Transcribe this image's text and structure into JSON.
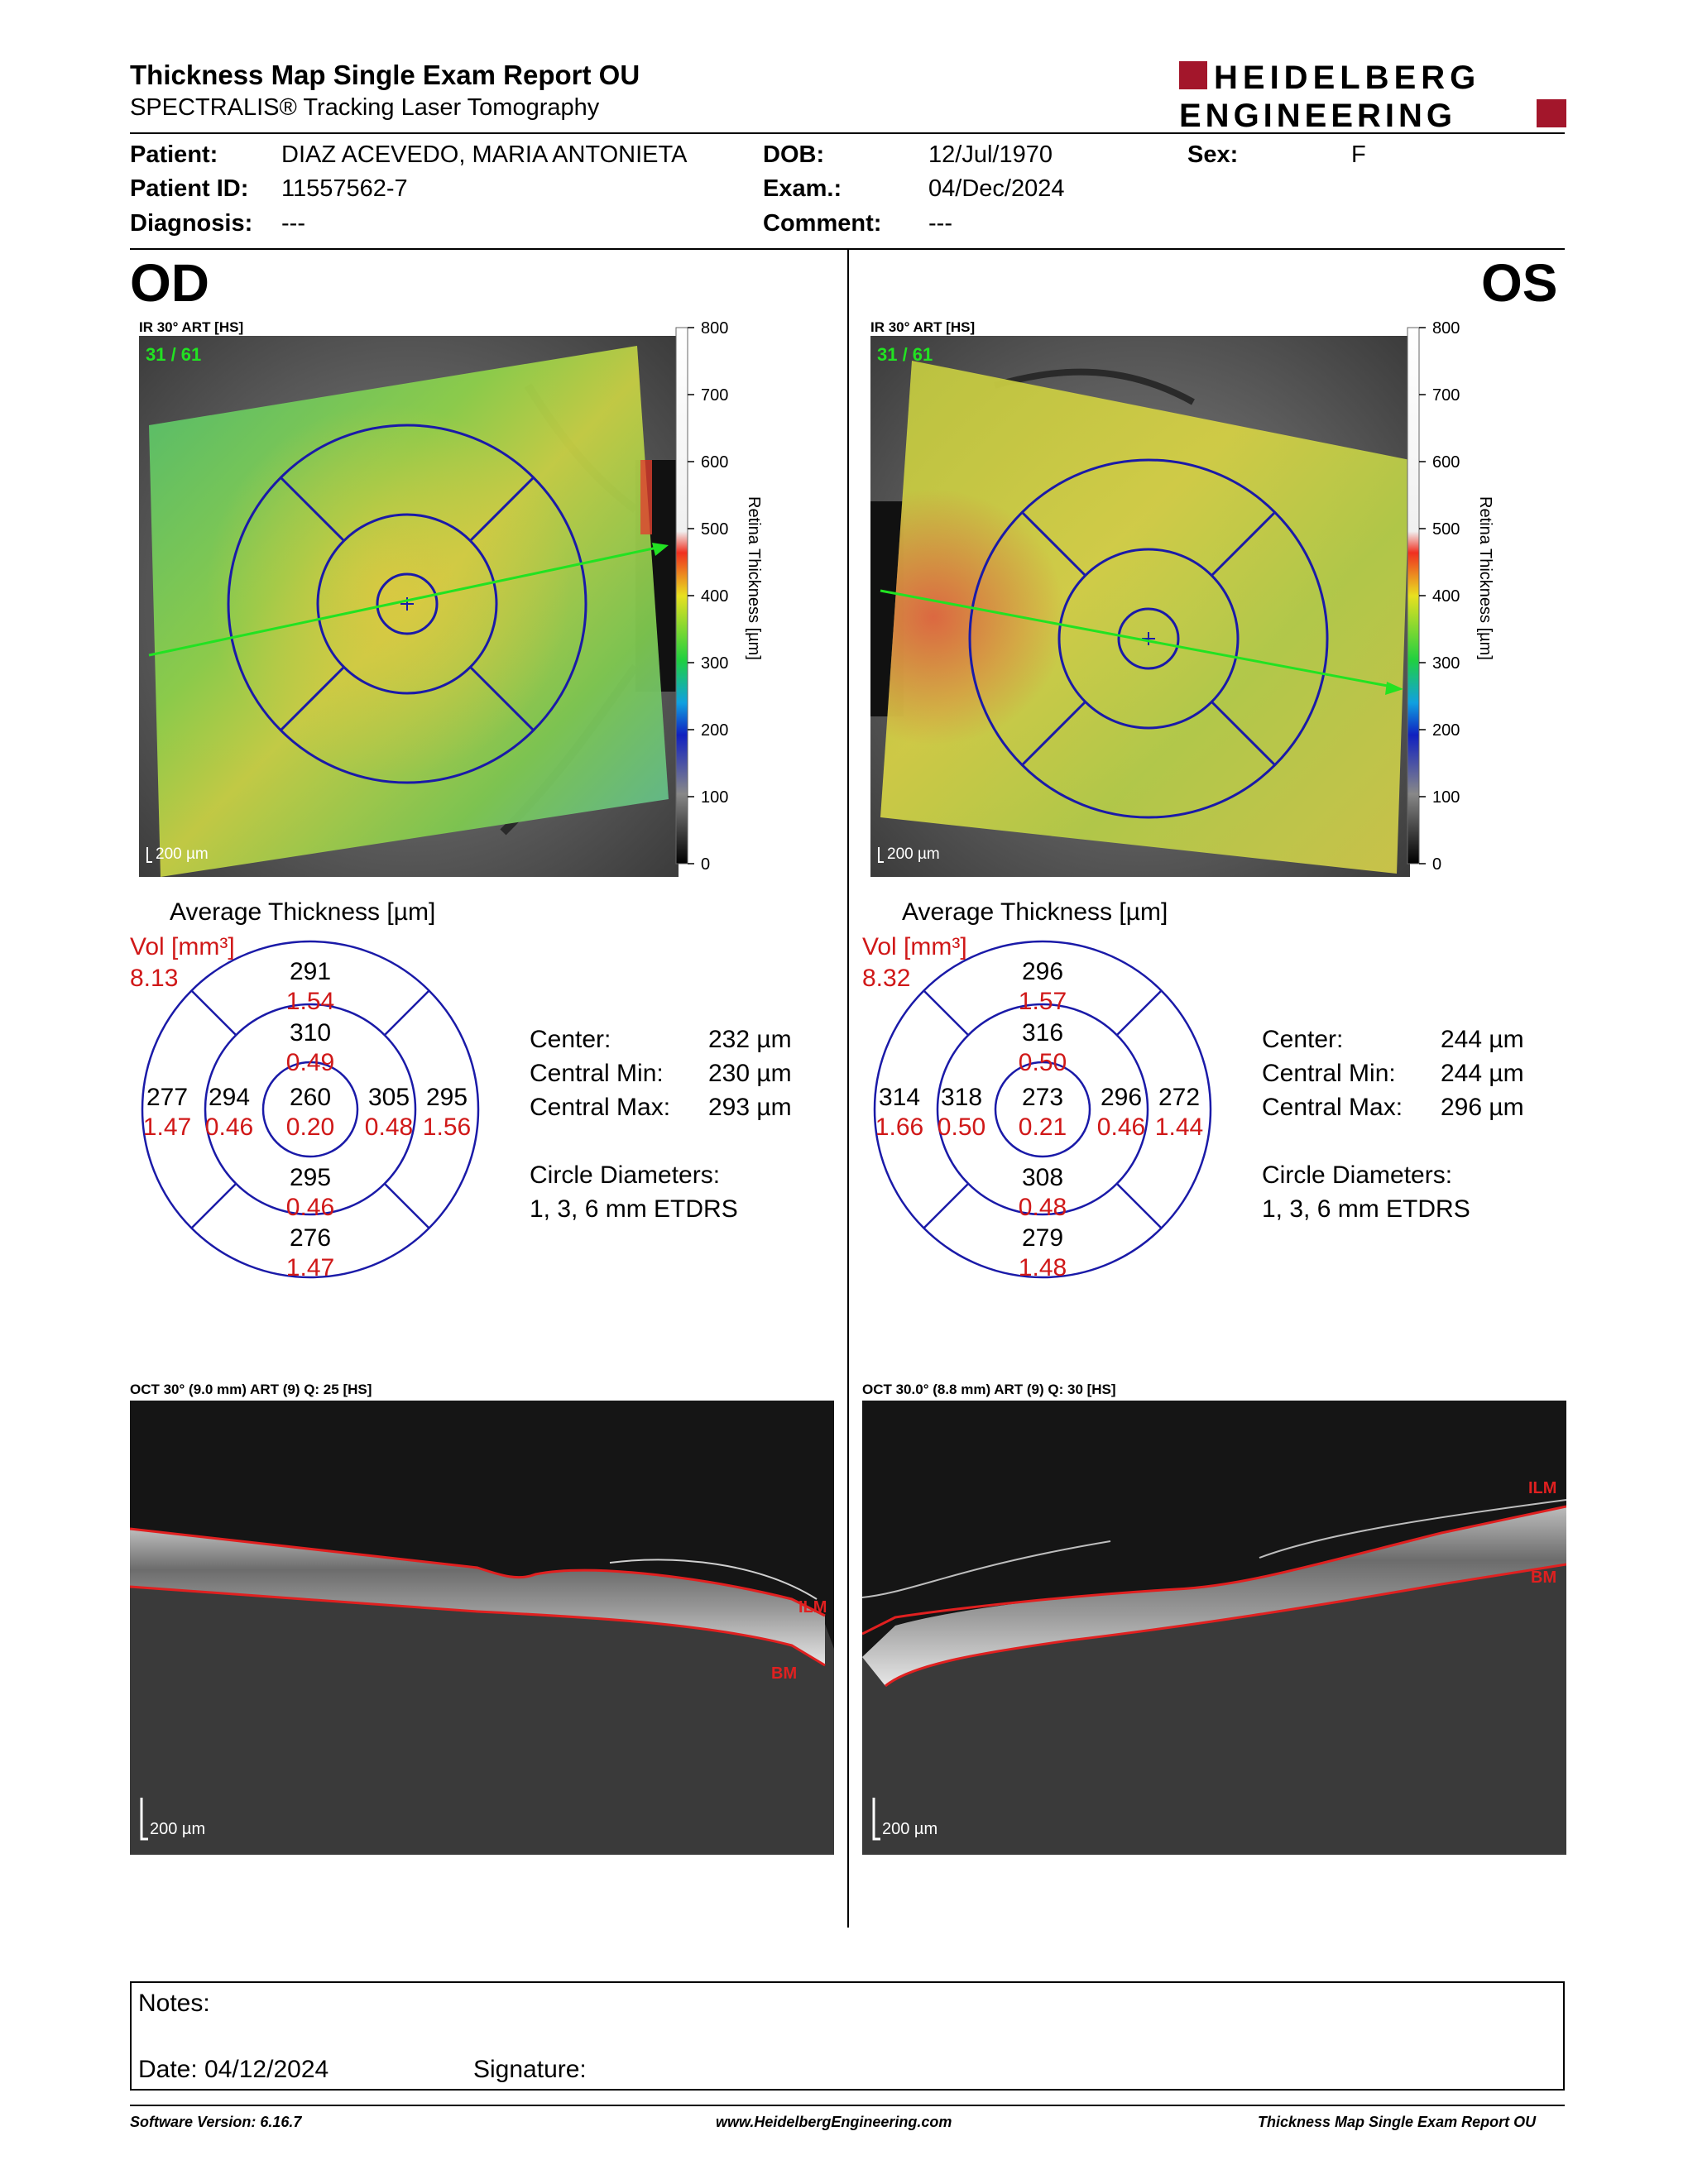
{
  "header": {
    "title": "Thickness Map Single Exam Report OU",
    "subtitle": "SPECTRALIS® Tracking Laser Tomography",
    "logo_line1": "HEIDELBERG",
    "logo_line2": "ENGINEERING"
  },
  "patient": {
    "patient_label": "Patient:",
    "patient_value": "DIAZ ACEVEDO, MARIA ANTONIETA",
    "id_label": "Patient ID:",
    "id_value": "11557562-7",
    "diagnosis_label": "Diagnosis:",
    "diagnosis_value": "---",
    "dob_label": "DOB:",
    "dob_value": "12/Jul/1970",
    "exam_label": "Exam.:",
    "exam_value": "04/Dec/2024",
    "comment_label": "Comment:",
    "comment_value": "---",
    "sex_label": "Sex:",
    "sex_value": "F"
  },
  "colorbar": {
    "ticks": [
      "800",
      "700",
      "600",
      "500",
      "400",
      "300",
      "200",
      "100",
      "0"
    ],
    "label": "Retina Thickness [µm]"
  },
  "od": {
    "eye": "OD",
    "ir_caption": "IR 30° ART [HS]",
    "scan_counter": "31 / 61",
    "scale": "200 µm",
    "avg_title": "Average Thickness [µm]",
    "vol_label": "Vol [mm³]",
    "vol_value": "8.13",
    "grid": {
      "outer_top": {
        "t": "291",
        "v": "1.54"
      },
      "inner_top": {
        "t": "310",
        "v": "0.49"
      },
      "outer_left": {
        "t": "277",
        "v": "1.47"
      },
      "inner_left": {
        "t": "294",
        "v": "0.46"
      },
      "center": {
        "t": "260",
        "v": "0.20"
      },
      "inner_right": {
        "t": "305",
        "v": "0.48"
      },
      "outer_right": {
        "t": "295",
        "v": "1.56"
      },
      "inner_bottom": {
        "t": "295",
        "v": "0.46"
      },
      "outer_bottom": {
        "t": "276",
        "v": "1.47"
      }
    },
    "stats": [
      {
        "label": "Center:",
        "value": "232 µm"
      },
      {
        "label": "Central Min:",
        "value": "230 µm"
      },
      {
        "label": "Central Max:",
        "value": "293 µm"
      }
    ],
    "diam_label": "Circle Diameters:",
    "diam_value": "1, 3, 6 mm ETDRS",
    "oct_caption": "OCT 30° (9.0 mm) ART (9) Q: 25 [HS]",
    "ilm": "ILM",
    "bm": "BM",
    "oct_scale": "200 µm"
  },
  "os": {
    "eye": "OS",
    "ir_caption": "IR 30° ART [HS]",
    "scan_counter": "31 / 61",
    "scale": "200 µm",
    "avg_title": "Average Thickness [µm]",
    "vol_label": "Vol [mm³]",
    "vol_value": "8.32",
    "grid": {
      "outer_top": {
        "t": "296",
        "v": "1.57"
      },
      "inner_top": {
        "t": "316",
        "v": "0.50"
      },
      "outer_left": {
        "t": "314",
        "v": "1.66"
      },
      "inner_left": {
        "t": "318",
        "v": "0.50"
      },
      "center": {
        "t": "273",
        "v": "0.21"
      },
      "inner_right": {
        "t": "296",
        "v": "0.46"
      },
      "outer_right": {
        "t": "272",
        "v": "1.44"
      },
      "inner_bottom": {
        "t": "308",
        "v": "0.48"
      },
      "outer_bottom": {
        "t": "279",
        "v": "1.48"
      }
    },
    "stats": [
      {
        "label": "Center:",
        "value": "244 µm"
      },
      {
        "label": "Central Min:",
        "value": "244 µm"
      },
      {
        "label": "Central Max:",
        "value": "296 µm"
      }
    ],
    "diam_label": "Circle Diameters:",
    "diam_value": "1, 3, 6 mm ETDRS",
    "oct_caption": "OCT 30.0° (8.8 mm) ART (9) Q: 30 [HS]",
    "ilm": "ILM",
    "bm": "BM",
    "oct_scale": "200 µm"
  },
  "notes": {
    "notes_label": "Notes:",
    "date_label": "Date: 04/12/2024",
    "signature_label": "Signature:"
  },
  "footer": {
    "left": "Software Version: 6.16.7",
    "center": "www.HeidelbergEngineering.com",
    "right": "Thickness Map Single Exam Report OU"
  },
  "colors": {
    "brand_red": "#a3162b",
    "grid_blue": "#1a1aa8",
    "value_red": "#d01818",
    "layer_red": "#e02020",
    "arrow_green": "#22e222"
  }
}
